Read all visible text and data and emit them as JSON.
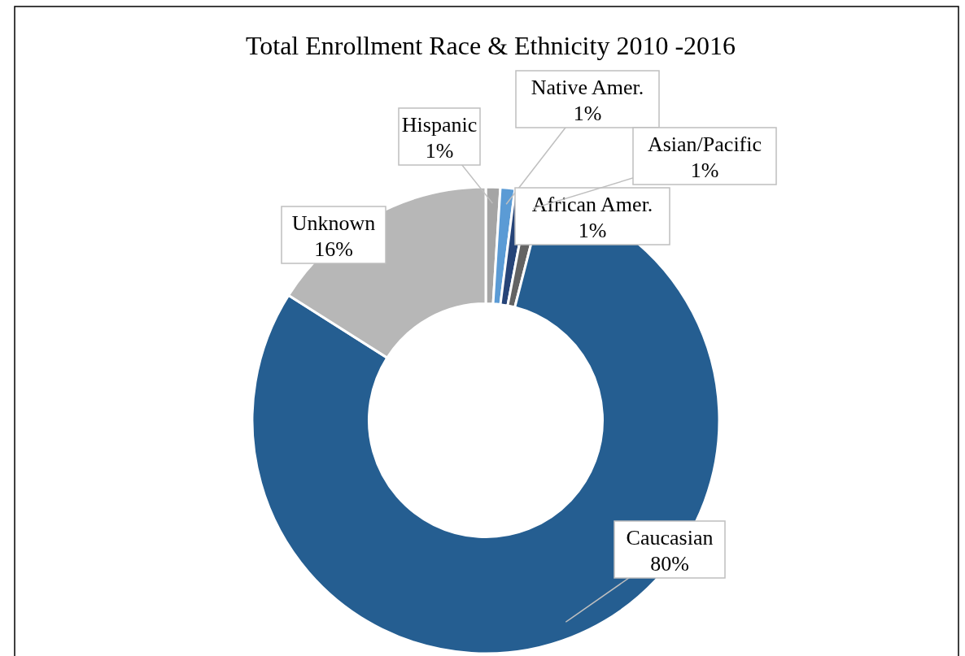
{
  "chart_data": {
    "type": "donut",
    "title": "Total Enrollment Race & Ethnicity 2010 -2016",
    "categories": [
      "Hispanic",
      "Native Amer.",
      "African Amer.",
      "Asian/Pacific",
      "Caucasian",
      "Unknown"
    ],
    "values": [
      1,
      1,
      1,
      1,
      80,
      16
    ],
    "value_labels": [
      "1%",
      "1%",
      "1%",
      "1%",
      "80%",
      "16%"
    ],
    "colors": [
      "#a5a5a5",
      "#5b9bd5",
      "#264478",
      "#636363",
      "#255e91",
      "#b7b7b7"
    ]
  }
}
